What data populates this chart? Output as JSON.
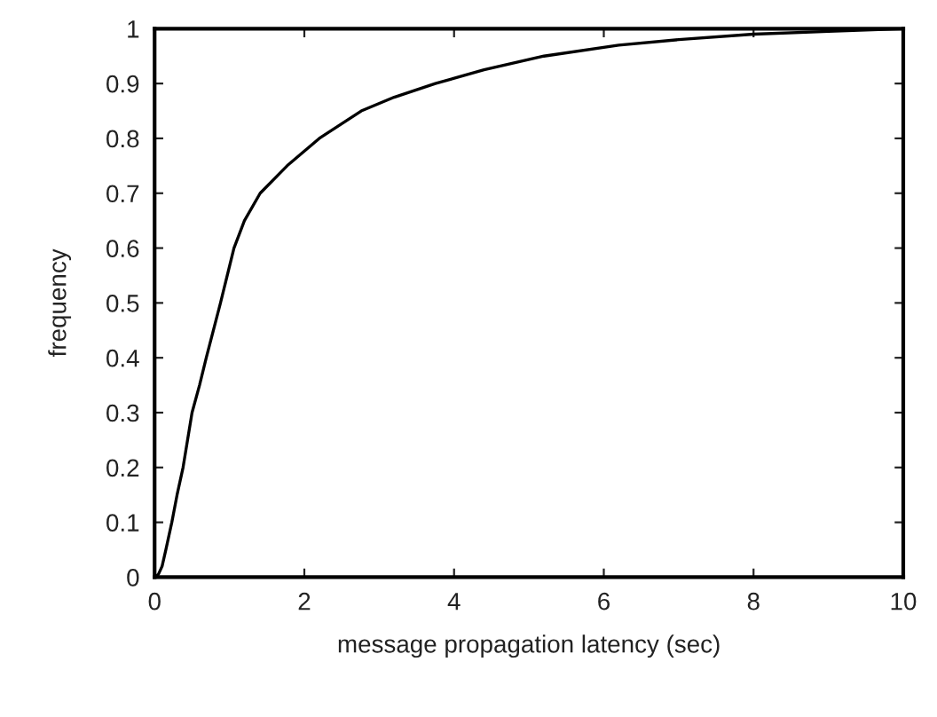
{
  "chart_data": {
    "type": "line",
    "xlabel": "message propagation latency (sec)",
    "ylabel": "frequency",
    "x": [
      0,
      0.05,
      0.1,
      0.15,
      0.23,
      0.3,
      0.38,
      0.5,
      0.6,
      0.69,
      0.88,
      1.06,
      1.2,
      1.41,
      1.77,
      2.2,
      2.76,
      3.2,
      3.75,
      4.4,
      5.2,
      6.2,
      7,
      8,
      9,
      10
    ],
    "series": [
      {
        "color": "#000000",
        "values": [
          0,
          0.005,
          0.02,
          0.05,
          0.1,
          0.15,
          0.2,
          0.3,
          0.35,
          0.4,
          0.5,
          0.6,
          0.65,
          0.7,
          0.75,
          0.8,
          0.85,
          0.875,
          0.9,
          0.925,
          0.95,
          0.97,
          0.98,
          0.99,
          0.995,
          1.0
        ]
      }
    ],
    "xlim": [
      0,
      10
    ],
    "ylim": [
      0,
      1
    ],
    "xticks": [
      0,
      2,
      4,
      6,
      8,
      10
    ],
    "yticks": [
      0,
      0.1,
      0.2,
      0.3,
      0.4,
      0.5,
      0.6,
      0.7,
      0.8,
      0.9,
      1
    ],
    "grid": false,
    "legend": false,
    "marker": "none",
    "line_style": "solid"
  }
}
